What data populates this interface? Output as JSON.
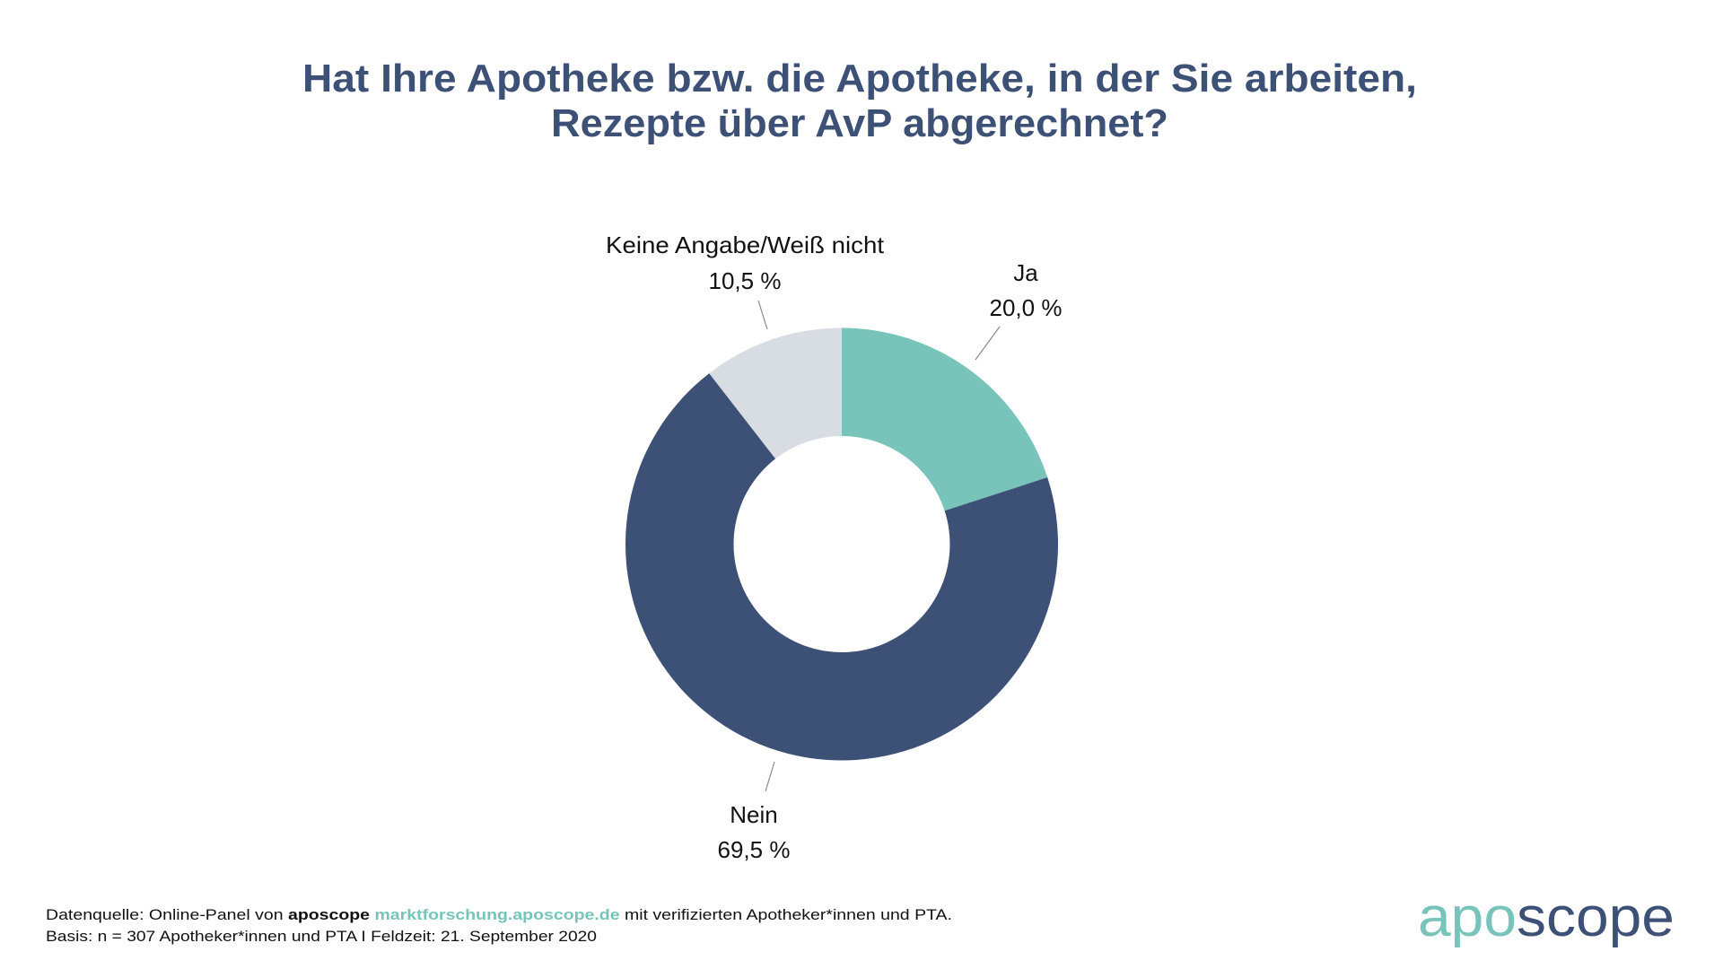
{
  "colors": {
    "title": "#3d5177",
    "navy": "#3d5177",
    "teal": "#78c4bb",
    "gray": "#d8dce3",
    "leader": "#8a8a8a"
  },
  "chart_data": {
    "type": "pie",
    "variant": "donut",
    "title": "Hat Ihre Apotheke bzw. die Apotheke, in der Sie arbeiten, Rezepte über AvP abgerechnet?",
    "title_lines": [
      "Hat Ihre Apotheke bzw. die Apotheke, in der Sie arbeiten,",
      "Rezepte über AvP abgerechnet?"
    ],
    "unit": "%",
    "start": "top",
    "direction": "clockwise",
    "slices": [
      {
        "label": "Ja",
        "value": 20.0,
        "value_label": "20,0 %",
        "color": "#78c4bb"
      },
      {
        "label": "Nein",
        "value": 69.5,
        "value_label": "69,5 %",
        "color": "#3d5177"
      },
      {
        "label": "Keine Angabe/Weiß nicht",
        "value": 10.5,
        "value_label": "10,5 %",
        "color": "#d8dce3"
      }
    ]
  },
  "footer": {
    "line1_prefix": "Datenquelle: Online-Panel von ",
    "line1_brand": "aposcope",
    "line1_link": "marktforschung.aposcope.de",
    "line1_suffix": " mit verifizierten Apotheker*innen und PTA.",
    "line2": "Basis: n = 307  Apotheker*innen und PTA I Feldzeit: 21. September 2020"
  },
  "logo": {
    "part1": "apo",
    "part2": "scope"
  }
}
